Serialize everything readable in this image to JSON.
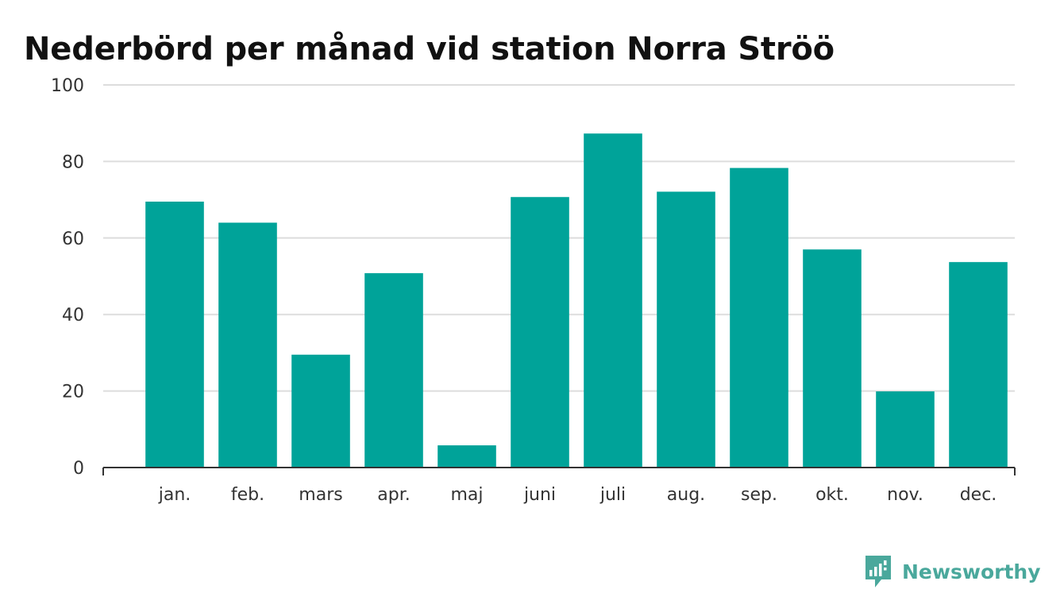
{
  "chart_data": {
    "type": "bar",
    "title": "Nederbörd per månad vid station Norra Ströö",
    "xlabel": "",
    "ylabel": "",
    "categories": [
      "jan.",
      "feb.",
      "mars",
      "apr.",
      "maj",
      "juni",
      "juli",
      "aug.",
      "sep.",
      "okt.",
      "nov.",
      "dec."
    ],
    "values": [
      69.5,
      64,
      29.5,
      50.8,
      5.8,
      70.7,
      87.3,
      72.1,
      78.3,
      57,
      19.9,
      53.7
    ],
    "ylim": [
      0,
      100
    ],
    "yticks": [
      0,
      20,
      40,
      60,
      80,
      100
    ],
    "yticklabels": [
      "0",
      "20",
      "40",
      "60",
      "80",
      "100"
    ],
    "grid": true,
    "legend": "none",
    "colors": {
      "bar": "#00a399",
      "grid": "#dddddd",
      "axis": "#333333"
    }
  },
  "brand": {
    "name": "Newsworthy",
    "icon": "newsworthy-logo-icon",
    "color": "#4aa89c"
  }
}
